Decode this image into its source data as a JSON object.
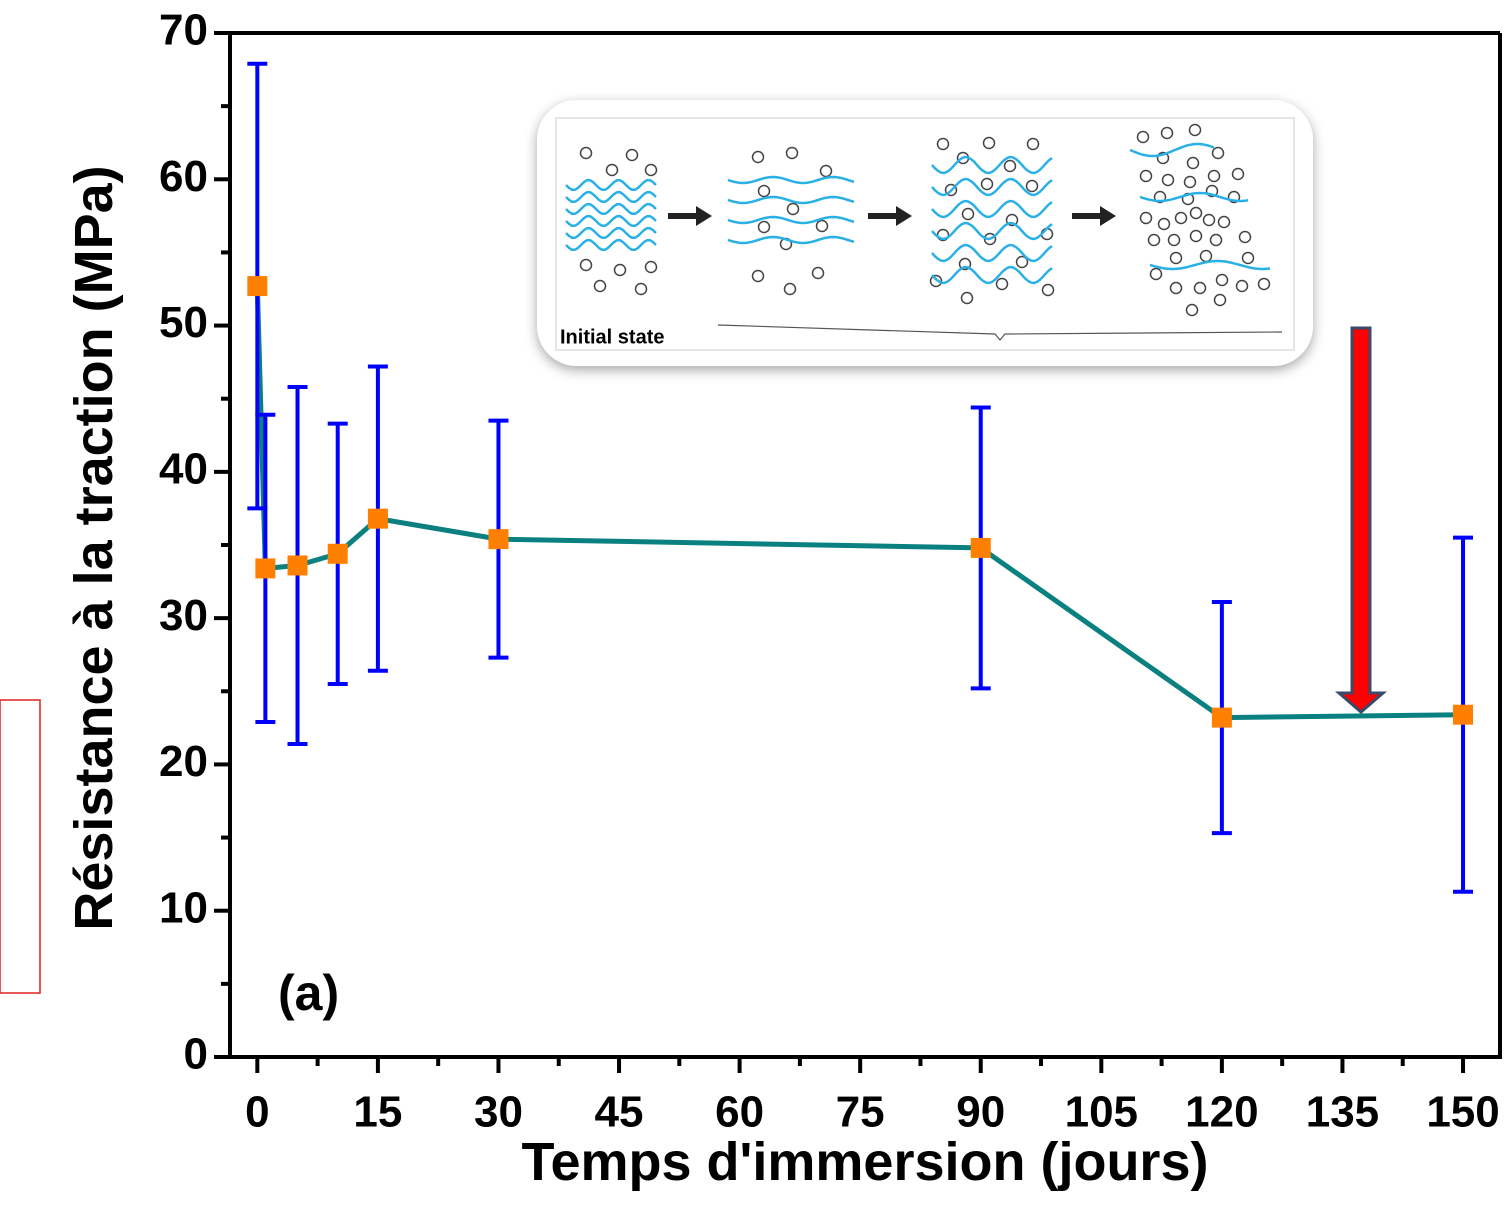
{
  "chart_data": {
    "type": "line",
    "x_label": "Temps d'immersion (jours)",
    "y_label": "Résistance à la traction (MPa)",
    "annotations": [
      "(a)",
      "Initial state"
    ],
    "x": [
      0,
      1,
      5,
      10,
      15,
      30,
      90,
      120,
      150
    ],
    "series": [
      {
        "color": "#0a8080",
        "marker_color": "#ff8000",
        "error_color": "#0000ff",
        "values": [
          52.7,
          33.4,
          33.6,
          34.4,
          36.8,
          35.4,
          34.8,
          23.2,
          23.4
        ],
        "errors": [
          15.2,
          10.5,
          12.2,
          8.9,
          10.4,
          8.1,
          9.6,
          7.9,
          12.1
        ]
      }
    ],
    "xlim": [
      -3.4,
      154.6
    ],
    "ylim": [
      0,
      70
    ],
    "xticks": [
      0,
      15,
      30,
      45,
      60,
      75,
      90,
      105,
      120,
      135,
      150
    ],
    "yticks": [
      0,
      10,
      20,
      30,
      40,
      50,
      60,
      70
    ]
  }
}
